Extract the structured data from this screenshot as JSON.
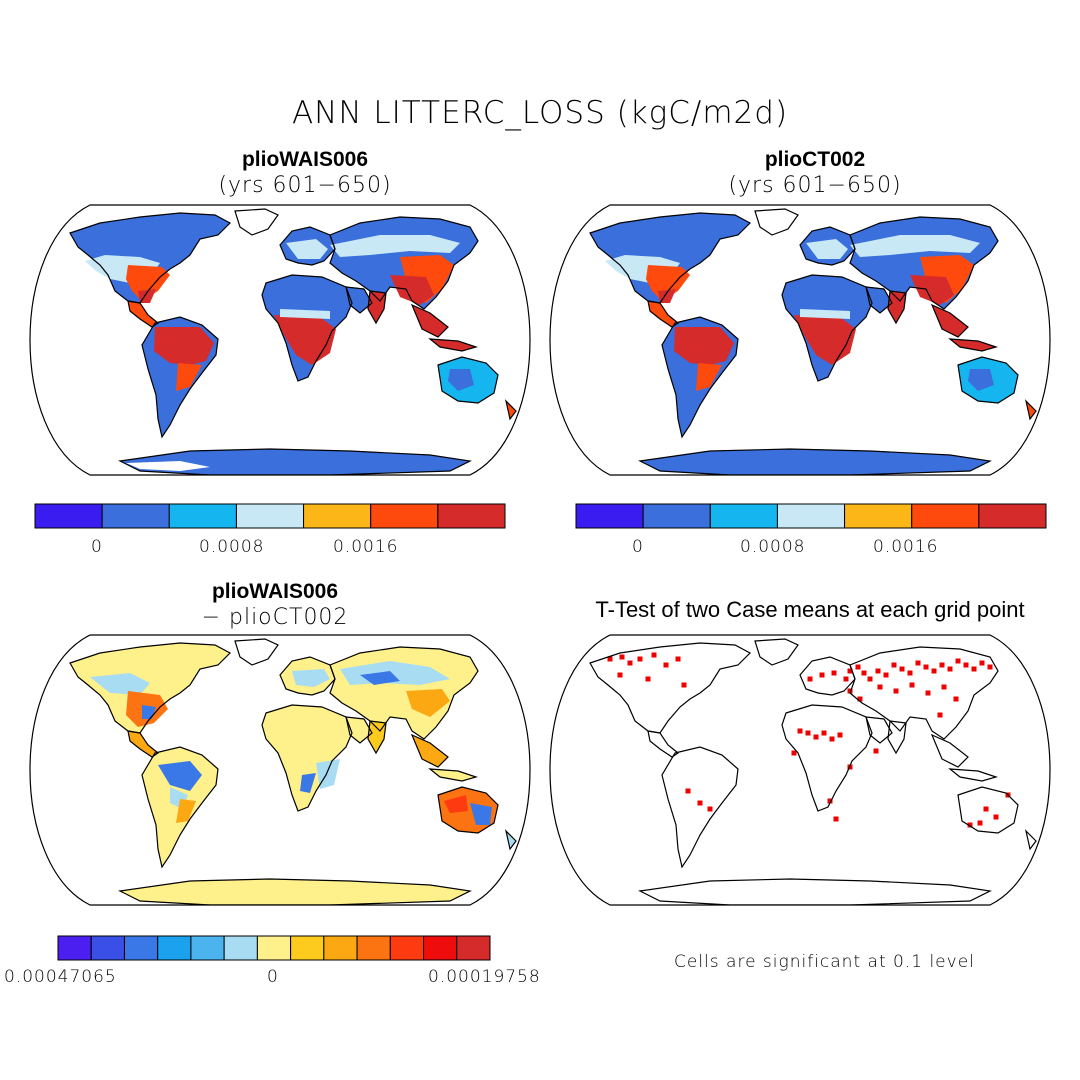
{
  "title": "ANN LITTERC_LOSS (kgC/m2d)",
  "panels": [
    {
      "id": "case1",
      "title": "plioWAIS006",
      "subtitle": "(yrs 601−650)",
      "colorbar": {
        "colors": [
          "#3b1cf0",
          "#3a6fdc",
          "#15b6f0",
          "#c8e8f6",
          "#fcb618",
          "#fe4a0c",
          "#d52b2b"
        ],
        "labels": [
          "0",
          "0.0008",
          "0.0016"
        ]
      }
    },
    {
      "id": "case2",
      "title": "plioCT002",
      "subtitle": "(yrs 601−650)",
      "colorbar": {
        "colors": [
          "#3b1cf0",
          "#3a6fdc",
          "#15b6f0",
          "#c8e8f6",
          "#fcb618",
          "#fe4a0c",
          "#d52b2b"
        ],
        "labels": [
          "0",
          "0.0008",
          "0.0016"
        ]
      }
    },
    {
      "id": "diff",
      "title": "plioWAIS006",
      "subtitle": "− plioCT002",
      "colorbar": {
        "colors": [
          "#4a1ff0",
          "#3a4fe6",
          "#3a78e8",
          "#1aa2ee",
          "#4bb4ee",
          "#a8dcf2",
          "#fef08a",
          "#fccb1e",
          "#fba813",
          "#fc7412",
          "#fe3a10",
          "#ee0c0c",
          "#d52b2b"
        ],
        "labels": [
          "0.00047065",
          "0",
          "0.00019758"
        ]
      }
    },
    {
      "id": "ttest",
      "title": "T-Test of two Case means at each grid point",
      "note": "Cells are significant at 0.1 level",
      "significance_color": "#ee0000"
    }
  ]
}
